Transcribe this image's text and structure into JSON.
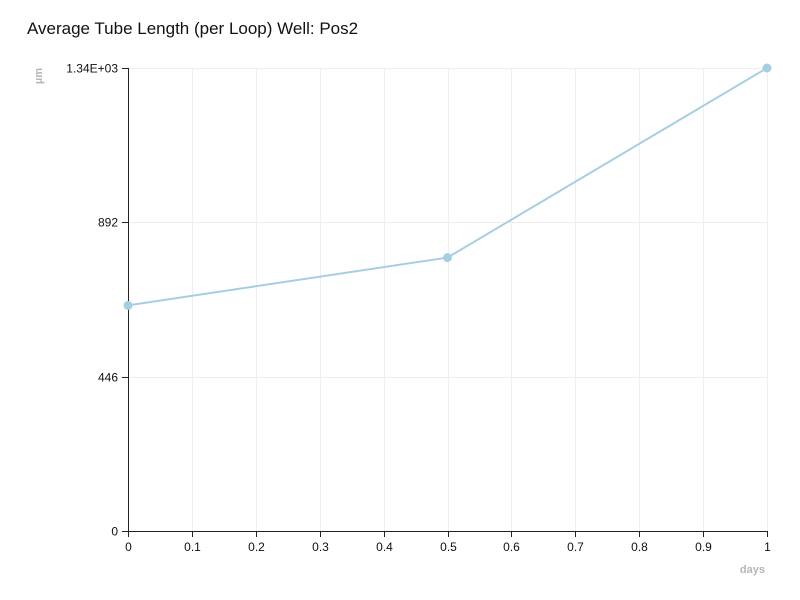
{
  "chart_data": {
    "type": "line",
    "title": "Average Tube Length (per Loop) Well: Pos2",
    "xlabel": "days",
    "ylabel": "µm",
    "xlim": [
      0,
      1
    ],
    "ylim": [
      0,
      1338
    ],
    "x_ticks": [
      0,
      0.1,
      0.2,
      0.3,
      0.4,
      0.5,
      0.6,
      0.7,
      0.8,
      0.9,
      1
    ],
    "x_tick_labels": [
      "0",
      "0.1",
      "0.2",
      "0.3",
      "0.4",
      "0.5",
      "0.6",
      "0.7",
      "0.8",
      "0.9",
      "1"
    ],
    "y_ticks": [
      0,
      446,
      892,
      1338
    ],
    "y_tick_labels": [
      "0",
      "446",
      "892",
      "1.34E+03"
    ],
    "grid": true,
    "series": [
      {
        "x": [
          0,
          0.5,
          1
        ],
        "values": [
          652,
          790,
          1338
        ],
        "color": "#a6cee3"
      }
    ]
  }
}
